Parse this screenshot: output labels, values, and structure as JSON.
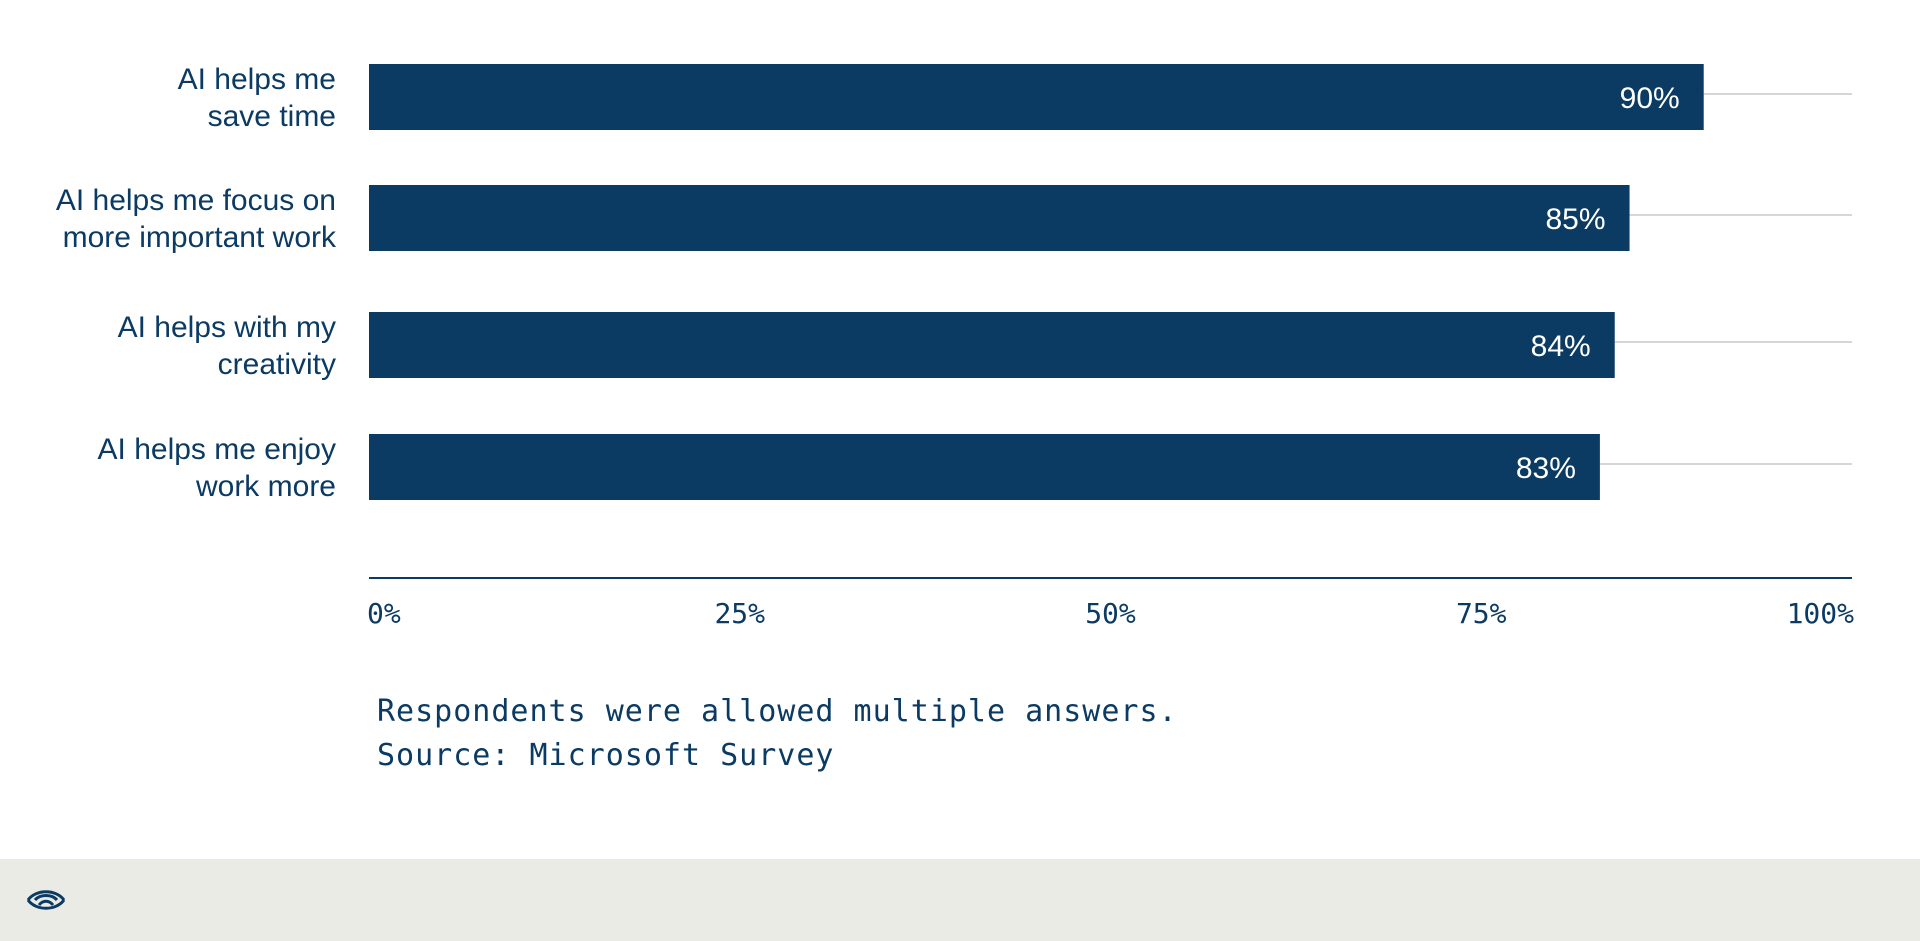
{
  "chart_data": {
    "type": "bar",
    "orientation": "horizontal",
    "categories": [
      [
        "AI helps me",
        "save time"
      ],
      [
        "AI helps me focus on",
        "more important work"
      ],
      [
        "AI helps with my",
        "creativity"
      ],
      [
        "AI helps me enjoy",
        "work more"
      ]
    ],
    "values": [
      90,
      85,
      84,
      83
    ],
    "value_labels": [
      "90%",
      "85%",
      "84%",
      "83%"
    ],
    "xlim": [
      0,
      100
    ],
    "x_ticks": [
      0,
      25,
      50,
      75,
      100
    ],
    "x_tick_labels": [
      "0%",
      "25%",
      "50%",
      "75%",
      "100%"
    ],
    "bar_color": "#0b3a63",
    "axis_color": "#0b3a63",
    "guide_line_color": "#c8c8c8",
    "grid": false
  },
  "notes": {
    "line1": "Respondents were allowed multiple answers.",
    "line2": "Source: Microsoft Survey"
  },
  "footer": {
    "logo_icon": "eye-logo-icon",
    "background": "#ebebe6"
  }
}
